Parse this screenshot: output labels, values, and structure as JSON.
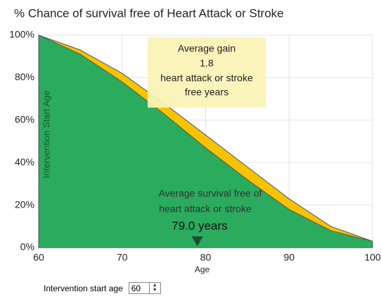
{
  "chart_data": {
    "type": "area",
    "title": "% Chance of survival free of Heart Attack or Stroke",
    "x_label": "Age",
    "x": [
      60,
      65,
      70,
      75,
      80,
      85,
      90,
      95,
      100
    ],
    "series": [
      {
        "color": "#f7c200",
        "values": [
          100,
          93,
          82,
          68,
          53,
          38,
          23,
          10,
          3
        ]
      },
      {
        "color": "#2bab5e",
        "values": [
          100,
          91,
          78,
          63,
          47,
          32,
          18,
          8,
          3
        ]
      }
    ],
    "xlim": [
      60,
      100
    ],
    "ylim": [
      0,
      100
    ],
    "xticks": [
      60,
      70,
      80,
      90,
      100
    ],
    "yticks": [
      {
        "value": 0,
        "label": "0%"
      },
      {
        "value": 20,
        "label": "20%"
      },
      {
        "value": 40,
        "label": "40%"
      },
      {
        "value": 60,
        "label": "60%"
      },
      {
        "value": 80,
        "label": "80%"
      },
      {
        "value": 100,
        "label": "100%"
      }
    ],
    "grid": true,
    "start_label": "Intervention Start Age",
    "gain_box": {
      "lines": [
        "Average gain",
        "heart attack or stroke",
        "free years"
      ],
      "value": 1.8
    },
    "survival_note": {
      "lines": [
        "Average survival free of",
        "heart attack or stroke"
      ],
      "marker": {
        "value": 79.0,
        "label": "79.0 years"
      }
    }
  },
  "controls": {
    "label": "Intervention start age",
    "value": 60
  }
}
